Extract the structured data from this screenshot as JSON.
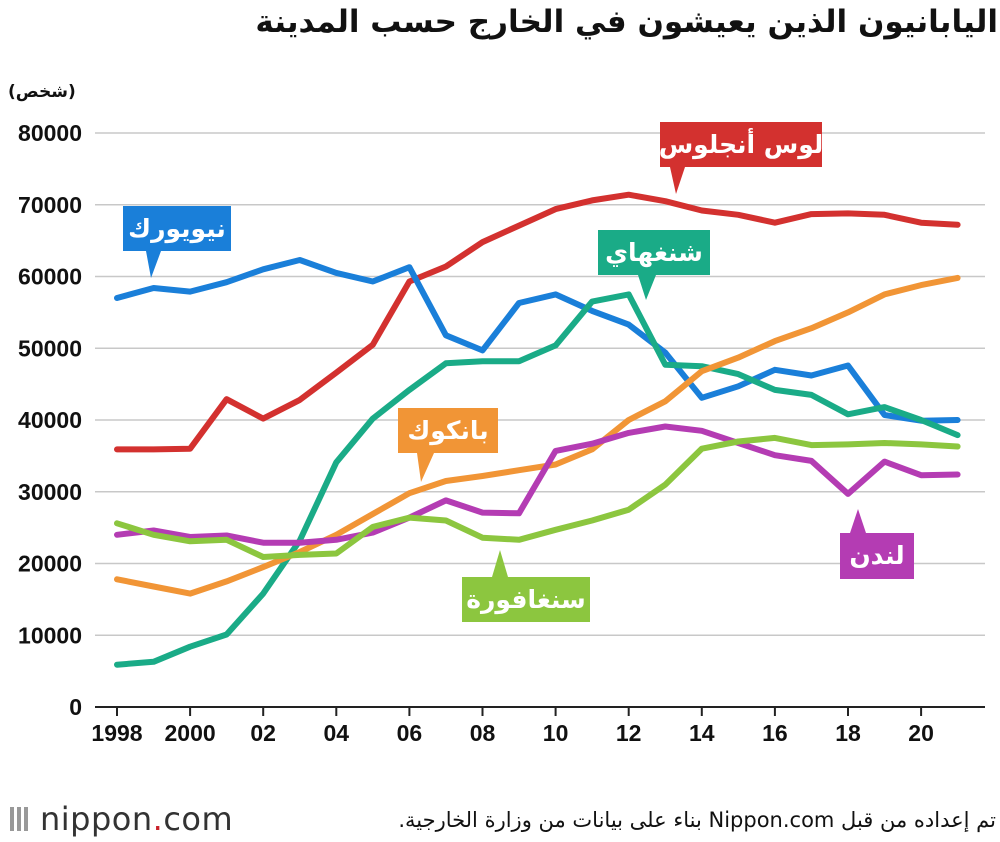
{
  "chart_data": {
    "type": "line",
    "title": "اليابانيون الذين يعيشون في الخارج حسب المدينة",
    "ylabel": "(شخص)",
    "ylim": [
      0,
      80000
    ],
    "yticks": [
      "0",
      "10000",
      "20000",
      "30000",
      "40000",
      "50000",
      "60000",
      "70000",
      "80000"
    ],
    "xticks": [
      {
        "year": 1998,
        "label": "1998"
      },
      {
        "year": 2000,
        "label": "2000"
      },
      {
        "year": 2002,
        "label": "02"
      },
      {
        "year": 2004,
        "label": "04"
      },
      {
        "year": 2006,
        "label": "06"
      },
      {
        "year": 2008,
        "label": "08"
      },
      {
        "year": 2010,
        "label": "10"
      },
      {
        "year": 2012,
        "label": "12"
      },
      {
        "year": 2014,
        "label": "14"
      },
      {
        "year": 2016,
        "label": "16"
      },
      {
        "year": 2018,
        "label": "18"
      },
      {
        "year": 2020,
        "label": "20"
      }
    ],
    "x": [
      1998,
      1999,
      2000,
      2001,
      2002,
      2003,
      2004,
      2005,
      2006,
      2007,
      2008,
      2009,
      2010,
      2011,
      2012,
      2013,
      2014,
      2015,
      2016,
      2017,
      2018,
      2019,
      2020,
      2021
    ],
    "series": [
      {
        "name": "لوس أنجلوس",
        "color": "#d3312f",
        "values": [
          35900,
          35900,
          36000,
          42900,
          40200,
          42800,
          46600,
          50500,
          59300,
          61400,
          64800,
          67100,
          69400,
          70600,
          71400,
          70500,
          69200,
          68600,
          67500,
          68700,
          68800,
          68600,
          67500,
          67200
        ]
      },
      {
        "name": "نيويورك",
        "color": "#1a7fd9",
        "values": [
          57000,
          58400,
          57900,
          59200,
          61000,
          62300,
          60500,
          59300,
          61300,
          51800,
          49700,
          56300,
          57500,
          55200,
          53300,
          49400,
          43100,
          44700,
          47000,
          46200,
          47600,
          40700,
          39900,
          40000
        ]
      },
      {
        "name": "شنغهاي",
        "color": "#1aab87",
        "values": [
          5900,
          6300,
          8400,
          10100,
          15800,
          23200,
          34100,
          40200,
          44200,
          47900,
          48200,
          48200,
          50400,
          56500,
          57500,
          47700,
          47500,
          46400,
          44200,
          43500,
          40800,
          41800,
          40000,
          37900
        ]
      },
      {
        "name": "بانكوك",
        "color": "#f19536",
        "values": [
          17800,
          16800,
          15800,
          17500,
          19500,
          21600,
          24000,
          26900,
          29800,
          31500,
          32200,
          33000,
          33800,
          35900,
          40000,
          42600,
          46800,
          48700,
          51000,
          52800,
          55000,
          57500,
          58800,
          59800
        ]
      },
      {
        "name": "لندن",
        "color": "#b43cb3",
        "values": [
          24000,
          24600,
          23700,
          23900,
          22900,
          22900,
          23300,
          24300,
          26400,
          28800,
          27100,
          27000,
          35700,
          36700,
          38200,
          39100,
          38500,
          36800,
          35100,
          34300,
          29700,
          34200,
          32300,
          32400
        ]
      },
      {
        "name": "سنغافورة",
        "color": "#8cc63f",
        "values": [
          25600,
          24000,
          23100,
          23300,
          20900,
          21200,
          21400,
          25100,
          26400,
          26000,
          23600,
          23300,
          24700,
          26000,
          27500,
          31000,
          36000,
          37000,
          37500,
          36500,
          36600,
          36800,
          36600,
          36300
        ]
      }
    ]
  },
  "labels": {
    "losangeles": "لوس أنجلوس",
    "newyork": "نيويورك",
    "shanghai": "شنغهاي",
    "bangkok": "بانكوك",
    "london": "لندن",
    "singapore": "سنغافورة"
  },
  "source": "تم إعداده من قبل Nippon.com بناء على بيانات من وزارة الخارجية.",
  "logo": {
    "name": "nippon",
    "dot": ".",
    "suffix": "com"
  }
}
